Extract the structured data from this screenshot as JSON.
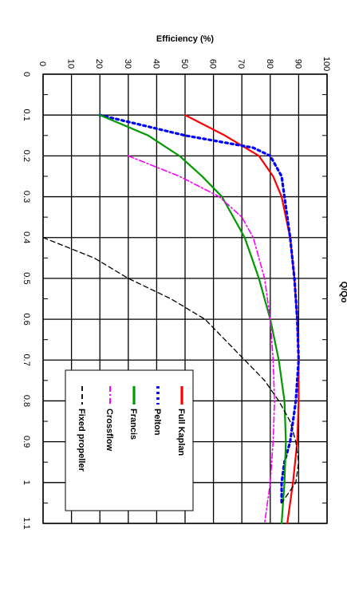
{
  "chart_data": {
    "type": "line",
    "orientation": "rotated-90-clockwise",
    "xlabel": "Q/Qo",
    "ylabel": "Efficiency (%)",
    "xlim": [
      0,
      1.1
    ],
    "ylim": [
      0,
      100
    ],
    "x_ticks": [
      "0",
      "0.1",
      "0.2",
      "0.3",
      "0.4",
      "0.5",
      "0.6",
      "0.7",
      "0.8",
      "0.9",
      "1",
      "1.1"
    ],
    "y_ticks": [
      "0",
      "10",
      "20",
      "30",
      "40",
      "50",
      "60",
      "70",
      "80",
      "90",
      "100"
    ],
    "grid": true,
    "legend_position": "bottom-left",
    "series": [
      {
        "name": "Full Kaplan",
        "color": "#ff0000",
        "dash": "solid",
        "x": [
          0.1,
          0.15,
          0.2,
          0.25,
          0.3,
          0.4,
          0.5,
          0.6,
          0.7,
          0.8,
          0.9,
          1.0,
          1.1
        ],
        "y": [
          50,
          64,
          76,
          81,
          84,
          87,
          88.5,
          89.5,
          90,
          90,
          89.5,
          88,
          86
        ]
      },
      {
        "name": "Pelton",
        "color": "#0000ff",
        "dash": "dotted",
        "x": [
          0.1,
          0.15,
          0.18,
          0.2,
          0.25,
          0.3,
          0.4,
          0.5,
          0.6,
          0.7,
          0.8,
          0.9,
          0.95,
          1.0,
          1.05
        ],
        "y": [
          20,
          50,
          74,
          80,
          84,
          85,
          87,
          88.5,
          89.5,
          90,
          89,
          87,
          85,
          84,
          84
        ]
      },
      {
        "name": "Francis",
        "color": "#009900",
        "dash": "solid",
        "x": [
          0.1,
          0.15,
          0.2,
          0.25,
          0.3,
          0.4,
          0.5,
          0.6,
          0.7,
          0.8,
          0.9,
          1.0,
          1.1
        ],
        "y": [
          20,
          37,
          48,
          56,
          63,
          71,
          76,
          80,
          83,
          85,
          85.5,
          85,
          84
        ]
      },
      {
        "name": "Crossflow",
        "color": "#ff00ff",
        "dash": "dashdot",
        "x": [
          0.2,
          0.25,
          0.3,
          0.35,
          0.4,
          0.5,
          0.6,
          0.7,
          0.8,
          0.9,
          1.0,
          1.1
        ],
        "y": [
          30,
          48,
          62,
          70,
          74,
          78,
          80,
          81,
          81.5,
          81,
          80,
          78
        ]
      },
      {
        "name": "Fixed propeller",
        "color": "#000000",
        "dash": "dashed",
        "x": [
          0.4,
          0.45,
          0.5,
          0.55,
          0.6,
          0.65,
          0.7,
          0.75,
          0.8,
          0.85,
          0.9,
          0.95,
          1.0,
          1.05
        ],
        "y": [
          0,
          18,
          30,
          45,
          57,
          64,
          71,
          78,
          83,
          87,
          89,
          90,
          89,
          84
        ]
      }
    ]
  }
}
